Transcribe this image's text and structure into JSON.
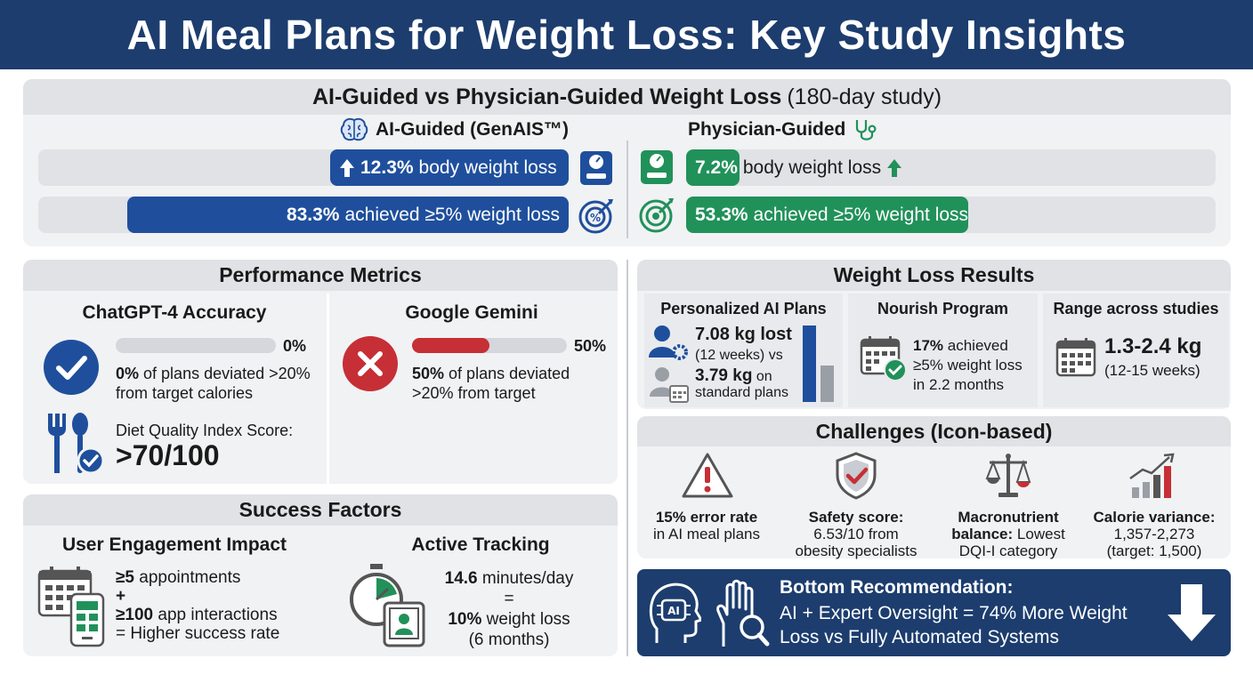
{
  "title": "AI Meal Plans for Weight Loss: Key Study Insights",
  "comparison": {
    "heading_bold": "AI-Guided vs Physician-Guided Weight Loss",
    "heading_light": "(180-day study)",
    "ai_label": "AI-Guided (GenAIS™)",
    "physician_label": "Physician-Guided",
    "ai_weight_value": "12.3%",
    "ai_weight_text": "body weight loss",
    "ai_achieved_value": "83.3%",
    "ai_achieved_text": "achieved ≥5% weight loss",
    "phys_weight_value": "7.2%",
    "phys_weight_text": "body weight loss",
    "phys_achieved_value": "53.3%",
    "phys_achieved_text": "achieved ≥5% weight loss",
    "ai_weight_fraction": 0.123,
    "ai_achieved_fraction": 0.833,
    "phys_weight_fraction": 0.072,
    "phys_achieved_fraction": 0.533,
    "colors": {
      "ai": "#1f4f9c",
      "physician": "#21915a"
    }
  },
  "performance": {
    "heading": "Performance Metrics",
    "chatgpt_title": "ChatGPT-4 Accuracy",
    "chatgpt_pct": "0%",
    "chatgpt_fraction": 0.0,
    "chatgpt_value": "0%",
    "chatgpt_text": "of plans deviated >20%",
    "chatgpt_text2": "from target calories",
    "dqi_label": "Diet Quality Index Score:",
    "dqi_value": ">70/100",
    "gemini_title": "Google Gemini",
    "gemini_pct": "50%",
    "gemini_fraction": 0.5,
    "gemini_value": "50%",
    "gemini_text": "of plans deviated",
    "gemini_text2": ">20% from target"
  },
  "success": {
    "heading": "Success Factors",
    "engagement_title": "User Engagement Impact",
    "appointments_value": "≥5",
    "appointments_text": "appointments",
    "plus": "+",
    "interactions_value": "≥100",
    "interactions_text": "app interactions",
    "result": "= Higher success rate",
    "tracking_title": "Active Tracking",
    "minutes_value": "14.6",
    "minutes_text": "minutes/day",
    "equals": "=",
    "loss_value": "10%",
    "loss_text": "weight loss",
    "duration": "(6 months)"
  },
  "results": {
    "heading": "Weight Loss Results",
    "personalized_title": "Personalized AI Plans",
    "personalized_value": "7.08 kg lost",
    "personalized_sub": "(12 weeks) vs",
    "standard_value": "3.79 kg",
    "standard_sub": "on",
    "standard_sub2": "standard plans",
    "personalized_kg": 7.08,
    "standard_kg": 3.79,
    "nourish_title": "Nourish Program",
    "nourish_value": "17%",
    "nourish_text": "achieved",
    "nourish_text2": "≥5% weight loss",
    "nourish_text3": "in 2.2 months",
    "range_title": "Range across studies",
    "range_value": "1.3-2.4 kg",
    "range_text": "(12-15 weeks)"
  },
  "challenges": {
    "heading": "Challenges (Icon-based)",
    "items": [
      {
        "bold": "15% error rate",
        "rest": "in AI meal plans",
        "rest2": "",
        "icon": "warning-icon"
      },
      {
        "bold": "Safety score:",
        "rest": "6.53/10 from",
        "rest2": "obesity specialists",
        "icon": "shield-check-icon"
      },
      {
        "bold": "Macronutrient",
        "rest": "balance: Lowest",
        "rest2": "DQI-I category",
        "bold2": "balance:",
        "rest_b": "Lowest",
        "icon": "scale-icon"
      },
      {
        "bold": "Calorie variance:",
        "rest": "1,357-2,273",
        "rest2": "(target: 1,500)",
        "icon": "trend-chart-icon"
      }
    ]
  },
  "recommendation": {
    "heading": "Bottom Recommendation:",
    "line1": "AI + Expert Oversight = 74% More Weight",
    "line2": "Loss vs Fully Automated Systems",
    "ai_badge": "AI"
  }
}
